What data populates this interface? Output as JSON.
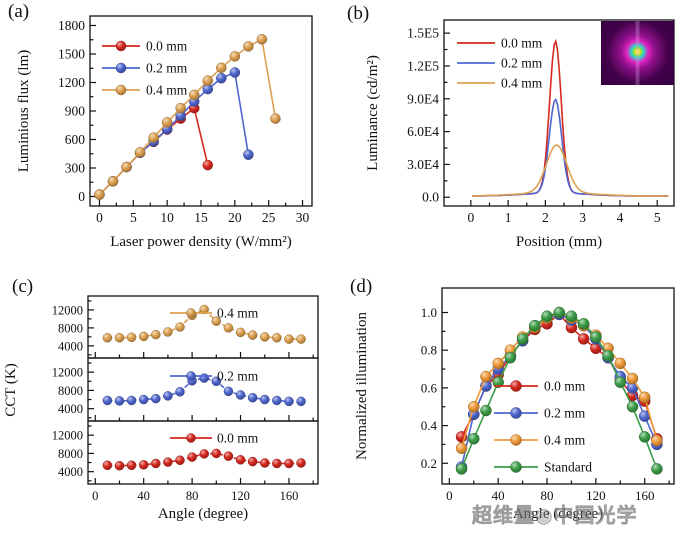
{
  "figure": {
    "watermark": "超维量◉中国光学",
    "panels": [
      {
        "letter": "(a)"
      },
      {
        "letter": "(b)"
      },
      {
        "letter": "(c)"
      },
      {
        "letter": "(d)"
      }
    ]
  },
  "colors": {
    "red": "#d5281e",
    "blue": "#4e66cf",
    "orange": "#dda04f",
    "orange_bright": "#ef9a38",
    "green": "#3c9e47",
    "axis": "#111111"
  },
  "chart_data": [
    {
      "id": "a",
      "type": "line",
      "title": "",
      "xlabel": "Laser power density (W/mm²)",
      "ylabel": "Luminious flux (lm)",
      "xlim": [
        0,
        30
      ],
      "ylim": [
        0,
        1800
      ],
      "xticks": [
        0,
        5,
        10,
        15,
        20,
        25,
        30
      ],
      "xminor": [
        2.5,
        7.5,
        12.5,
        17.5,
        22.5,
        27.5
      ],
      "yticks": [
        0,
        300,
        600,
        900,
        1200,
        1500,
        1800
      ],
      "yminor": [
        150,
        450,
        750,
        1050,
        1350,
        1650
      ],
      "legend_position": "top-left",
      "series": [
        {
          "name": "0.0 mm",
          "color": "#d5281e",
          "x": [
            0,
            2,
            4,
            6,
            8,
            10,
            12,
            14,
            16
          ],
          "y": [
            20,
            160,
            310,
            460,
            575,
            705,
            820,
            930,
            330
          ]
        },
        {
          "name": "0.2 mm",
          "color": "#4e66cf",
          "x": [
            0,
            2,
            4,
            6,
            8,
            10,
            12,
            14,
            16,
            18,
            20,
            22
          ],
          "y": [
            20,
            160,
            310,
            460,
            580,
            710,
            850,
            1000,
            1130,
            1245,
            1305,
            440
          ]
        },
        {
          "name": "0.4 mm",
          "color": "#dda04f",
          "x": [
            0,
            2,
            4,
            6,
            8,
            10,
            12,
            14,
            16,
            18,
            20,
            22,
            24,
            26
          ],
          "y": [
            20,
            160,
            310,
            465,
            620,
            780,
            930,
            1070,
            1220,
            1355,
            1475,
            1580,
            1655,
            820
          ]
        }
      ]
    },
    {
      "id": "b",
      "type": "line",
      "title": "",
      "xlabel": "Position (mm)",
      "ylabel": "Luminance (cd/m²)",
      "xlim": [
        0,
        5
      ],
      "ylim": [
        0,
        150000
      ],
      "xticks": [
        0,
        1,
        2,
        3,
        4,
        5
      ],
      "xminor": [
        0.5,
        1.5,
        2.5,
        3.5,
        4.5
      ],
      "yticks": [
        0,
        30000,
        60000,
        90000,
        120000,
        150000
      ],
      "ytick_labels": [
        "0.0",
        "3.0E4",
        "6.0E4",
        "9.0E4",
        "1.2E5",
        "1.5E5"
      ],
      "yminor": [
        15000,
        45000,
        75000,
        105000,
        135000
      ],
      "legend_position": "top-left",
      "inset": "luminance-spot-image",
      "series": [
        {
          "name": "0.0 mm",
          "color": "#d5281e",
          "curve": {
            "shape": "gaussian",
            "peak": 139000,
            "center": 2.27,
            "sigma": 0.155,
            "pedestal": 2800,
            "pedestal_sigma": 0.85,
            "baseline": 1100
          }
        },
        {
          "name": "0.2 mm",
          "color": "#4e66cf",
          "curve": {
            "shape": "gaussian",
            "peak": 85500,
            "center": 2.27,
            "sigma": 0.165,
            "pedestal": 2800,
            "pedestal_sigma": 0.85,
            "baseline": 1100
          }
        },
        {
          "name": "0.4 mm",
          "color": "#dda04f",
          "curve": {
            "shape": "gaussian",
            "peak": 43500,
            "center": 2.3,
            "sigma": 0.27,
            "pedestal": 3200,
            "pedestal_sigma": 0.95,
            "baseline": 1100
          }
        }
      ]
    },
    {
      "id": "c",
      "type": "stacked-line",
      "title": "",
      "xlabel": "Angle (degree)",
      "ylabel": "CCT (K)",
      "xlim": [
        0,
        180
      ],
      "ylim": [
        1300,
        15100
      ],
      "xticks": [
        0,
        40,
        80,
        120,
        160
      ],
      "xminor": [
        20,
        60,
        100,
        140,
        180
      ],
      "yticks": [
        4000,
        8000,
        12000
      ],
      "yminor": [
        2000,
        6000,
        10000,
        14000
      ],
      "x": [
        10,
        20,
        30,
        40,
        50,
        60,
        70,
        80,
        90,
        100,
        110,
        120,
        130,
        140,
        150,
        160,
        170
      ],
      "subplots": [
        {
          "name": "0.4 mm",
          "color": "#dda04f",
          "values": [
            5800,
            5800,
            5900,
            6100,
            6500,
            7100,
            8200,
            10800,
            12100,
            9500,
            8000,
            7000,
            6400,
            6000,
            5800,
            5500,
            5500
          ]
        },
        {
          "name": "0.2 mm",
          "color": "#4e66cf",
          "values": [
            5800,
            5700,
            5800,
            6000,
            6200,
            6800,
            7700,
            10100,
            10700,
            10000,
            7800,
            7000,
            6400,
            6000,
            5800,
            5600,
            5600
          ]
        },
        {
          "name": "0.0 mm",
          "color": "#d5281e",
          "values": [
            5400,
            5300,
            5400,
            5500,
            5800,
            6100,
            6500,
            7200,
            7900,
            8000,
            7400,
            6600,
            6200,
            5900,
            5800,
            5800,
            5900
          ]
        }
      ]
    },
    {
      "id": "d",
      "type": "line",
      "title": "",
      "xlabel": "Angle (degree)",
      "ylabel": "Normalized illumination",
      "xlim": [
        0,
        180
      ],
      "ylim": [
        0.1,
        1.05
      ],
      "xticks": [
        0,
        40,
        80,
        120,
        160
      ],
      "xminor": [
        20,
        60,
        100,
        140,
        180
      ],
      "yticks": [
        0.2,
        0.4,
        0.6,
        0.8,
        1.0
      ],
      "ytick_labels": [
        "0.2",
        "0.4",
        "0.6",
        "0.8",
        "1.0"
      ],
      "yminor": [
        0.3,
        0.5,
        0.7,
        0.9
      ],
      "legend_position": "center",
      "x": [
        10,
        20,
        30,
        40,
        50,
        60,
        70,
        80,
        90,
        100,
        110,
        120,
        130,
        140,
        150,
        160,
        170
      ],
      "series": [
        {
          "name": "0.0 mm",
          "color": "#d5281e",
          "values": [
            0.34,
            0.46,
            0.61,
            0.67,
            0.77,
            0.85,
            0.91,
            0.94,
            0.99,
            0.92,
            0.86,
            0.81,
            0.76,
            0.64,
            0.56,
            0.53,
            0.33
          ]
        },
        {
          "name": "0.2 mm",
          "color": "#4e66cf",
          "values": [
            0.18,
            0.46,
            0.61,
            0.7,
            0.77,
            0.85,
            0.93,
            0.97,
            0.99,
            0.96,
            0.93,
            0.86,
            0.76,
            0.66,
            0.6,
            0.45,
            0.3
          ]
        },
        {
          "name": "0.4 mm",
          "color": "#ef9a38",
          "values": [
            0.28,
            0.5,
            0.66,
            0.73,
            0.8,
            0.87,
            0.92,
            0.97,
            1.0,
            0.97,
            0.93,
            0.88,
            0.81,
            0.73,
            0.65,
            0.55,
            0.32
          ]
        },
        {
          "name": "Standard",
          "color": "#3c9e47",
          "values": [
            0.17,
            0.33,
            0.48,
            0.63,
            0.76,
            0.86,
            0.93,
            0.98,
            1.0,
            0.98,
            0.94,
            0.87,
            0.77,
            0.63,
            0.5,
            0.34,
            0.17
          ]
        }
      ]
    }
  ]
}
